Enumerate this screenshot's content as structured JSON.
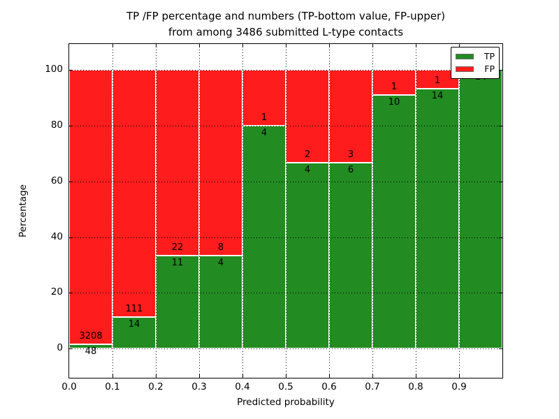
{
  "chart_data": {
    "type": "bar",
    "stacked": true,
    "normalized": "percent",
    "title": "TP /FP percentage and numbers (TP-bottom value, FP-upper) from among 3486 submitted L-type contacts",
    "title_line1": "TP /FP percentage and numbers (TP-bottom value, FP-upper)",
    "title_line2": "from among 3486 submitted L-type contacts",
    "xlabel": "Predicted probability",
    "ylabel": "Percentage",
    "xlim": [
      0.0,
      1.0
    ],
    "ylim": [
      -10.5,
      109.3
    ],
    "grid": "dotted, drawn above bars",
    "legend_position": "upper right",
    "total_contacts": "3486",
    "x_tick_labels": [
      "0.0",
      "0.1",
      "0.2",
      "0.3",
      "0.4",
      "0.5",
      "0.6",
      "0.7",
      "0.8",
      "0.9"
    ],
    "y_tick_values": [
      0,
      20,
      40,
      60,
      80,
      100
    ],
    "y_tick_labels": [
      "0",
      "20",
      "40",
      "60",
      "80",
      "100"
    ],
    "categories": [
      "0.0-0.1",
      "0.1-0.2",
      "0.2-0.3",
      "0.3-0.4",
      "0.4-0.5",
      "0.5-0.6",
      "0.6-0.7",
      "0.7-0.8",
      "0.8-0.9",
      "0.9-1.0"
    ],
    "series": [
      {
        "name": "TP",
        "color": "#228B22",
        "counts": [
          48,
          14,
          11,
          4,
          4,
          4,
          6,
          10,
          14,
          14
        ]
      },
      {
        "name": "FP",
        "color": "#FF1C1C",
        "counts": [
          3208,
          111,
          22,
          8,
          1,
          2,
          3,
          1,
          1,
          0
        ]
      }
    ],
    "tp_percent": [
      1.47,
      11.2,
      33.33,
      33.33,
      80.0,
      66.67,
      66.67,
      90.91,
      93.33,
      100.0
    ]
  }
}
